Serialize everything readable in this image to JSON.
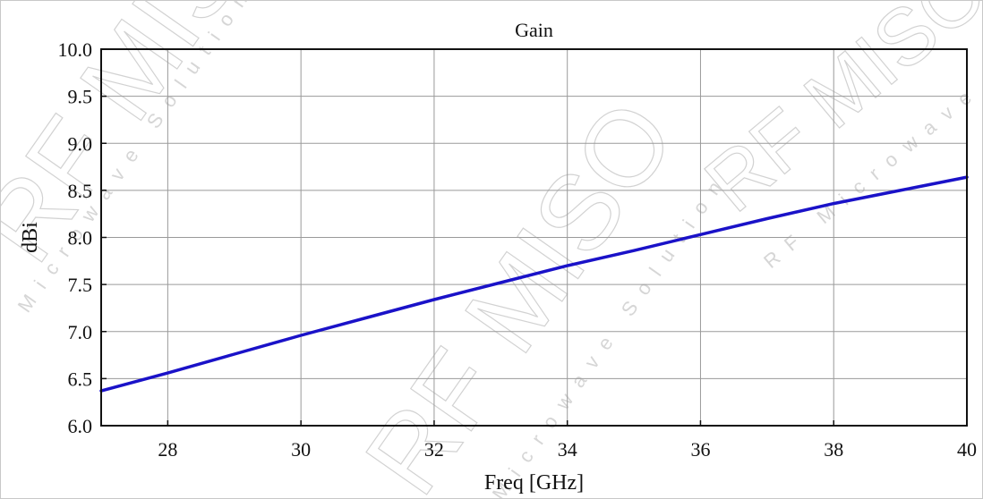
{
  "watermark": {
    "brand": "RF MISO",
    "tagline": "Microwave Solution",
    "tagline2": "RF Microwave"
  },
  "chart_data": {
    "type": "line",
    "title": "Gain",
    "xlabel": "Freq [GHz]",
    "ylabel": "dBi",
    "xlim": [
      27,
      40
    ],
    "ylim": [
      6.0,
      10.0
    ],
    "x_ticks": [
      28,
      30,
      32,
      34,
      36,
      38,
      40
    ],
    "x_tick_labels": [
      "28",
      "30",
      "32",
      "34",
      "36",
      "38",
      "40"
    ],
    "y_ticks": [
      6.0,
      6.5,
      7.0,
      7.5,
      8.0,
      8.5,
      9.0,
      9.5,
      10.0
    ],
    "y_tick_labels": [
      "6.0",
      "6.5",
      "7.0",
      "7.5",
      "8.0",
      "8.5",
      "9.0",
      "9.5",
      "10.0"
    ],
    "grid": true,
    "series": [
      {
        "color": "#1a12c8",
        "x": [
          27,
          28,
          29,
          30,
          31,
          32,
          33,
          34,
          35,
          36,
          37,
          38,
          39,
          40
        ],
        "y": [
          6.37,
          6.56,
          6.76,
          6.96,
          7.15,
          7.34,
          7.52,
          7.7,
          7.86,
          8.03,
          8.2,
          8.36,
          8.5,
          8.64
        ]
      }
    ]
  }
}
